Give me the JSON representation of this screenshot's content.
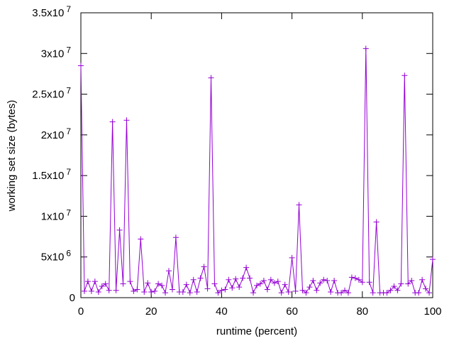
{
  "chart_data": {
    "type": "line",
    "markers": "plus",
    "xlabel": "runtime (percent)",
    "ylabel": "working set size (bytes)",
    "xlim": [
      0,
      100
    ],
    "ylim": [
      0,
      35000000
    ],
    "grid": false,
    "legend": "none",
    "color": "#9400d3",
    "x_ticks": [
      {
        "value": 0,
        "label": "0"
      },
      {
        "value": 20,
        "label": "20"
      },
      {
        "value": 40,
        "label": "40"
      },
      {
        "value": 60,
        "label": "60"
      },
      {
        "value": 80,
        "label": "80"
      },
      {
        "value": 100,
        "label": "100"
      }
    ],
    "y_ticks": [
      {
        "value": 0,
        "mantissa": "0",
        "exp": ""
      },
      {
        "value": 5000000,
        "mantissa": "5x10",
        "exp": "6"
      },
      {
        "value": 10000000,
        "mantissa": "1x10",
        "exp": "7"
      },
      {
        "value": 15000000,
        "mantissa": "1.5x10",
        "exp": "7"
      },
      {
        "value": 20000000,
        "mantissa": "2x10",
        "exp": "7"
      },
      {
        "value": 25000000,
        "mantissa": "2.5x10",
        "exp": "7"
      },
      {
        "value": 30000000,
        "mantissa": "3x10",
        "exp": "7"
      },
      {
        "value": 35000000,
        "mantissa": "3.5x10",
        "exp": "7"
      }
    ],
    "x": [
      0,
      1,
      2,
      3,
      4,
      5,
      6,
      7,
      8,
      9,
      10,
      11,
      12,
      13,
      14,
      15,
      16,
      17,
      18,
      19,
      20,
      21,
      22,
      23,
      24,
      25,
      26,
      27,
      28,
      29,
      30,
      31,
      32,
      33,
      34,
      35,
      36,
      37,
      38,
      39,
      40,
      41,
      42,
      43,
      44,
      45,
      46,
      47,
      48,
      49,
      50,
      51,
      52,
      53,
      54,
      55,
      56,
      57,
      58,
      59,
      60,
      61,
      62,
      63,
      64,
      65,
      66,
      67,
      68,
      69,
      70,
      71,
      72,
      73,
      74,
      75,
      76,
      77,
      78,
      79,
      80,
      81,
      82,
      83,
      84,
      85,
      86,
      87,
      88,
      89,
      90,
      91,
      92,
      93,
      94,
      95,
      96,
      97,
      98,
      99,
      100
    ],
    "y": [
      28500000,
      800000,
      2000000,
      800000,
      2000000,
      700000,
      1400000,
      1700000,
      900000,
      21600000,
      900000,
      8300000,
      1700000,
      21800000,
      2000000,
      800000,
      1000000,
      7200000,
      700000,
      1800000,
      700000,
      800000,
      1700000,
      1500000,
      600000,
      3300000,
      1000000,
      7400000,
      700000,
      700000,
      1600000,
      600000,
      2200000,
      700000,
      2400000,
      3800000,
      1100000,
      27000000,
      1700000,
      600000,
      900000,
      1000000,
      2200000,
      1200000,
      2300000,
      1300000,
      2400000,
      3700000,
      2400000,
      600000,
      1500000,
      1700000,
      2100000,
      1000000,
      2200000,
      1800000,
      2000000,
      600000,
      1600000,
      700000,
      4900000,
      800000,
      11400000,
      900000,
      600000,
      1300000,
      2100000,
      900000,
      1800000,
      2200000,
      2100000,
      700000,
      2100000,
      600000,
      600000,
      900000,
      600000,
      2500000,
      2400000,
      2200000,
      1900000,
      30600000,
      1900000,
      600000,
      9300000,
      600000,
      600000,
      600000,
      900000,
      1400000,
      900000,
      1700000,
      27300000,
      1700000,
      2100000,
      600000,
      600000,
      2200000,
      1100000,
      600000,
      4700000
    ]
  }
}
